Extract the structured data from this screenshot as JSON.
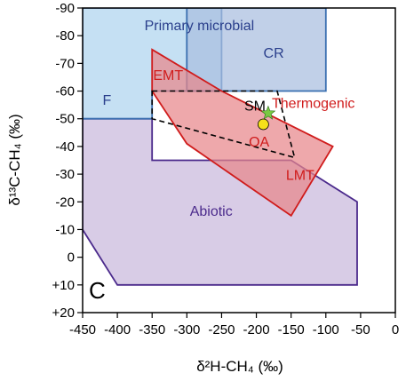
{
  "chart_data": {
    "type": "area",
    "panel_label": "C",
    "xlabel": "δ²H-CH₄ (‰)",
    "ylabel": "δ¹³C-CH₄ (‰)",
    "xlim": [
      -450,
      0
    ],
    "ylim": [
      20,
      -90
    ],
    "x_ticks": [
      -450,
      -400,
      -350,
      -300,
      -250,
      -200,
      -150,
      -100,
      -50,
      0
    ],
    "y_ticks": [
      -90,
      -80,
      -70,
      -60,
      -50,
      -40,
      -30,
      -20,
      -10,
      0,
      10,
      20
    ],
    "y_tick_labels": [
      "-90",
      "-80",
      "-70",
      "-60",
      "-50",
      "-40",
      "-30",
      "-20",
      "-10",
      "0",
      "+10",
      "+20"
    ],
    "grid": false,
    "regions": [
      {
        "name": "Abiotic",
        "fill": "#c9b8dd",
        "stroke": "#4b2a8c",
        "polygon": [
          [
            -450,
            -50
          ],
          [
            -350,
            -50
          ],
          [
            -350,
            -35
          ],
          [
            -150,
            -35
          ],
          [
            -55,
            -20
          ],
          [
            -55,
            10
          ],
          [
            -400,
            10
          ],
          [
            -450,
            -10
          ]
        ],
        "label_at": [
          -265,
          -15
        ],
        "label_color": "#4b2a8c"
      },
      {
        "name": "F",
        "fill": "#aed4ef",
        "stroke": "#3a6fb0",
        "polygon": [
          [
            -450,
            -90
          ],
          [
            -250,
            -90
          ],
          [
            -250,
            -60
          ],
          [
            -350,
            -60
          ],
          [
            -350,
            -50
          ],
          [
            -450,
            -50
          ]
        ],
        "label_at": [
          -415,
          -55
        ],
        "label_color": "#2a3f8c"
      },
      {
        "name": "CR",
        "fill": "#a9bedf",
        "stroke": "#3a6fb0",
        "polygon": [
          [
            -300,
            -90
          ],
          [
            -100,
            -90
          ],
          [
            -100,
            -60
          ],
          [
            -300,
            -60
          ]
        ],
        "label_at": [
          -175,
          -72
        ],
        "label_color": "#2a3f8c"
      },
      {
        "name": "Primary microbial",
        "fill": "none",
        "stroke": "none",
        "polygon": [],
        "label_at": [
          -282,
          -82
        ],
        "label_color": "#2a3f8c"
      },
      {
        "name": "Thermogenic",
        "fill": "#e8868a",
        "stroke": "#d01c1c",
        "polygon": [
          [
            -350,
            -75
          ],
          [
            -250,
            -60
          ],
          [
            -90,
            -40
          ],
          [
            -150,
            -15
          ],
          [
            -300,
            -41
          ],
          [
            -350,
            -60
          ]
        ],
        "label_at": [
          -118,
          -54
        ],
        "label_color": "#d01c1c"
      },
      {
        "name": "EMT",
        "fill": "none",
        "stroke": "none",
        "polygon": [],
        "label_at": [
          -327,
          -64
        ],
        "label_color": "#d01c1c"
      },
      {
        "name": "LMT",
        "fill": "none",
        "stroke": "none",
        "polygon": [],
        "label_at": [
          -137,
          -28
        ],
        "label_color": "#d01c1c"
      },
      {
        "name": "SM",
        "fill": "none",
        "stroke": "#000000",
        "dashed": true,
        "polygon": [
          [
            -350,
            -60
          ],
          [
            -170,
            -60
          ],
          [
            -145,
            -36
          ],
          [
            -350,
            -50
          ]
        ],
        "label_at": [
          -202,
          -53
        ],
        "label_color": "#000000"
      },
      {
        "name": "OA",
        "fill": "none",
        "stroke": "none",
        "polygon": [],
        "label_at": [
          -196,
          -40
        ],
        "label_color": "#d01c1c"
      }
    ],
    "markers": [
      {
        "shape": "star",
        "x": -183,
        "y": -52,
        "color": "#7ac943"
      },
      {
        "shape": "circle",
        "x": -190,
        "y": -48,
        "color": "#f5e11a"
      }
    ]
  }
}
